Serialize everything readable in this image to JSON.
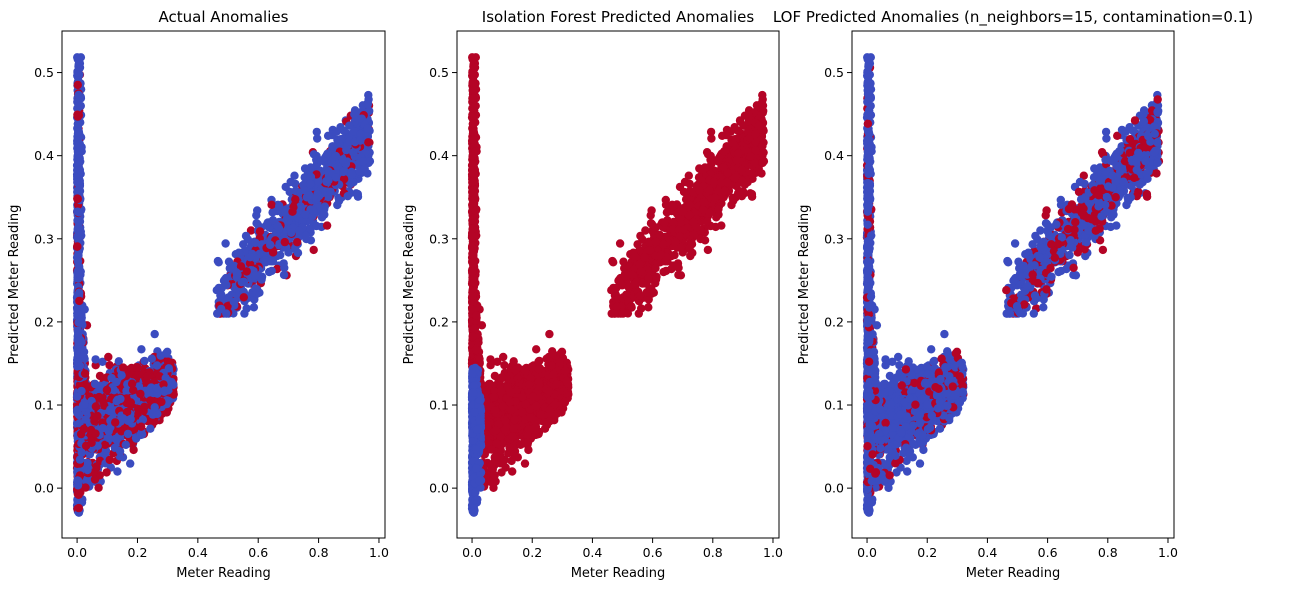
{
  "figure": {
    "colors": {
      "normal": "#3b4cc0",
      "anomaly": "#b40426",
      "axis": "#000000"
    },
    "panels": [
      {
        "title": "Actual Anomalies",
        "xlabel": "Meter Reading",
        "ylabel": "Predicted Meter Reading",
        "xlim": [
          -0.05,
          1.02
        ],
        "ylim": [
          -0.06,
          0.55
        ],
        "xticks": [
          "0.0",
          "0.2",
          "0.4",
          "0.6",
          "0.8",
          "1.0"
        ],
        "yticks": [
          "0.0",
          "0.1",
          "0.2",
          "0.3",
          "0.4",
          "0.5"
        ],
        "label_mode": "actual"
      },
      {
        "title": "Isolation Forest Predicted Anomalies",
        "xlabel": "Meter Reading",
        "ylabel": "Predicted Meter Reading",
        "xlim": [
          -0.05,
          1.02
        ],
        "ylim": [
          -0.06,
          0.55
        ],
        "xticks": [
          "0.0",
          "0.2",
          "0.4",
          "0.6",
          "0.8",
          "1.0"
        ],
        "yticks": [
          "0.0",
          "0.1",
          "0.2",
          "0.3",
          "0.4",
          "0.5"
        ],
        "label_mode": "isolation_forest"
      },
      {
        "title": "LOF Predicted Anomalies (n_neighbors=15, contamination=0.1)",
        "xlabel": "Meter Reading",
        "ylabel": "Predicted Meter Reading",
        "xlim": [
          -0.05,
          1.02
        ],
        "ylim": [
          -0.06,
          0.55
        ],
        "xticks": [
          "0.0",
          "0.2",
          "0.4",
          "0.6",
          "0.8",
          "1.0"
        ],
        "yticks": [
          "0.0",
          "0.1",
          "0.2",
          "0.3",
          "0.4",
          "0.5"
        ],
        "label_mode": "lof"
      }
    ]
  },
  "chart_data": [
    {
      "type": "scatter",
      "title": "Actual Anomalies",
      "xlabel": "Meter Reading",
      "ylabel": "Predicted Meter Reading",
      "xlim": [
        -0.05,
        1.02
      ],
      "ylim": [
        -0.06,
        0.55
      ],
      "grid": false,
      "point_color_normal": "#3b4cc0",
      "point_color_anomaly": "#b40426",
      "clusters": [
        {
          "x_range": [
            0.0,
            0.02
          ],
          "y_range": [
            -0.03,
            0.52
          ],
          "description": "vertical band near x=0"
        },
        {
          "x_range": [
            0.0,
            0.33
          ],
          "y_range": [
            0.0,
            0.21
          ],
          "description": "low wedge"
        },
        {
          "x_range": [
            0.46,
            0.97
          ],
          "y_range": [
            0.21,
            0.47
          ],
          "description": "upper diagonal band"
        }
      ]
    },
    {
      "type": "scatter",
      "title": "Isolation Forest Predicted Anomalies",
      "xlabel": "Meter Reading",
      "ylabel": "Predicted Meter Reading",
      "xlim": [
        -0.05,
        1.02
      ],
      "ylim": [
        -0.06,
        0.55
      ],
      "grid": false,
      "point_color_normal": "#3b4cc0",
      "point_color_anomaly": "#b40426",
      "clusters": [
        {
          "x_range": [
            0.0,
            0.02
          ],
          "y_range": [
            -0.03,
            0.52
          ]
        },
        {
          "x_range": [
            0.0,
            0.33
          ],
          "y_range": [
            0.0,
            0.21
          ]
        },
        {
          "x_range": [
            0.46,
            0.97
          ],
          "y_range": [
            0.21,
            0.47
          ]
        }
      ]
    },
    {
      "type": "scatter",
      "title": "LOF Predicted Anomalies (n_neighbors=15, contamination=0.1)",
      "xlabel": "Meter Reading",
      "ylabel": "Predicted Meter Reading",
      "xlim": [
        -0.05,
        1.02
      ],
      "ylim": [
        -0.06,
        0.55
      ],
      "grid": false,
      "point_color_normal": "#3b4cc0",
      "point_color_anomaly": "#b40426",
      "clusters": [
        {
          "x_range": [
            0.0,
            0.02
          ],
          "y_range": [
            -0.03,
            0.52
          ]
        },
        {
          "x_range": [
            0.0,
            0.33
          ],
          "y_range": [
            0.0,
            0.21
          ]
        },
        {
          "x_range": [
            0.46,
            0.97
          ],
          "y_range": [
            0.21,
            0.47
          ]
        }
      ]
    }
  ]
}
